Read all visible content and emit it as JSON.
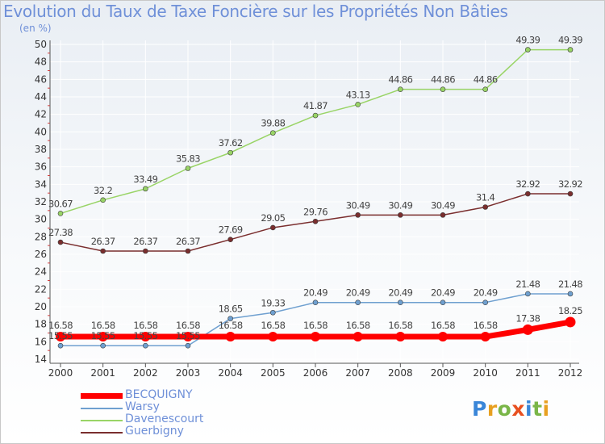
{
  "title": "Evolution du Taux de Taxe Foncière sur les Propriétés Non Bâties",
  "subtitle": "(en %)",
  "logo": {
    "text": "Proxiti",
    "colors": [
      "#3a86d8",
      "#e8a020",
      "#7ab648",
      "#e85020",
      "#3a86d8",
      "#7ab648",
      "#e8a020"
    ]
  },
  "chart_data": {
    "type": "line",
    "title": "Evolution du Taux de Taxe Foncière sur les Propriétés Non Bâties",
    "ylabel": "(en %)",
    "xlabel": "",
    "x": [
      "2000",
      "2001",
      "2002",
      "2003",
      "2004",
      "2005",
      "2006",
      "2007",
      "2008",
      "2009",
      "2010",
      "2011",
      "2012"
    ],
    "ylim": [
      14,
      50
    ],
    "yticks": [
      14,
      16,
      18,
      20,
      22,
      24,
      26,
      28,
      30,
      32,
      34,
      36,
      38,
      40,
      42,
      44,
      46,
      48,
      50
    ],
    "grid": true,
    "legend_position": "bottom-left",
    "series": [
      {
        "name": "BECQUIGNY",
        "color": "#ff0000",
        "labels": [
          "16.58",
          "16.58",
          "16.58",
          "16.58",
          "16.58",
          "16.58",
          "16.58",
          "16.58",
          "16.58",
          "16.58",
          "16.58",
          "17.38",
          "18.25"
        ],
        "values": [
          16.58,
          16.58,
          16.58,
          16.58,
          16.58,
          16.58,
          16.58,
          16.58,
          16.58,
          16.58,
          16.58,
          17.38,
          18.25
        ]
      },
      {
        "name": "Warsy",
        "color": "#6fa0d0",
        "labels": [
          "15.55",
          "15.55",
          "15.55",
          "15.55",
          "18.65",
          "19.33",
          "20.49",
          "20.49",
          "20.49",
          "20.49",
          "20.49",
          "21.48",
          "21.48"
        ],
        "values": [
          15.55,
          15.55,
          15.55,
          15.55,
          18.65,
          19.33,
          20.49,
          20.49,
          20.49,
          20.49,
          20.49,
          21.48,
          21.48
        ]
      },
      {
        "name": "Davenescourt",
        "color": "#99d466",
        "labels": [
          "30.67",
          "32.2",
          "33.49",
          "35.83",
          "37.62",
          "39.88",
          "41.87",
          "43.13",
          "44.86",
          "44.86",
          "44.86",
          "49.39",
          "49.39"
        ],
        "values": [
          30.67,
          32.2,
          33.49,
          35.83,
          37.62,
          39.88,
          41.87,
          43.13,
          44.86,
          44.86,
          44.86,
          49.39,
          49.39
        ]
      },
      {
        "name": "Guerbigny",
        "color": "#7a2e2e",
        "labels": [
          "27.38",
          "26.37",
          "26.37",
          "26.37",
          "27.69",
          "29.05",
          "29.76",
          "30.49",
          "30.49",
          "30.49",
          "31.4",
          "32.92",
          "32.92"
        ],
        "values": [
          27.38,
          26.37,
          26.37,
          26.37,
          27.69,
          29.05,
          29.76,
          30.49,
          30.49,
          30.49,
          31.4,
          32.92,
          32.92
        ]
      }
    ]
  }
}
